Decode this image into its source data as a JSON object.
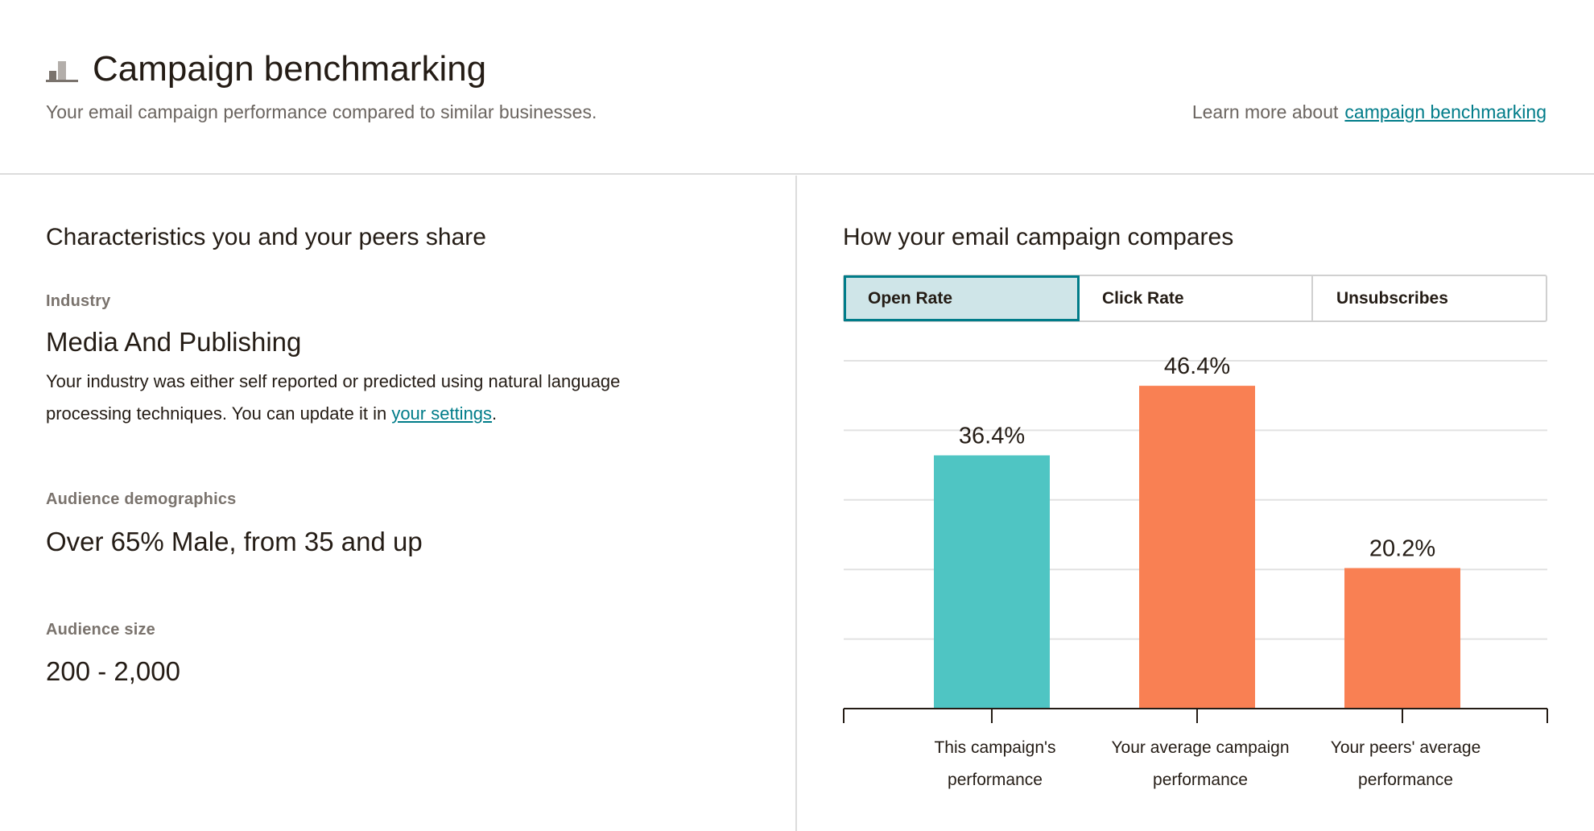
{
  "header": {
    "title": "Campaign benchmarking",
    "subtitle": "Your email campaign performance compared to similar businesses.",
    "learn_more_prefix": "Learn more about",
    "learn_more_link": "campaign benchmarking",
    "icon": "bar-chart-icon"
  },
  "characteristics": {
    "heading": "Characteristics you and your peers share",
    "industry": {
      "label": "Industry",
      "value": "Media And Publishing",
      "desc_prefix": "Your industry was either self reported or predicted using natural language processing techniques. You can update it in ",
      "desc_link": "your settings",
      "desc_suffix": "."
    },
    "demographics": {
      "label": "Audience demographics",
      "value": "Over 65% Male, from 35 and up"
    },
    "size": {
      "label": "Audience size",
      "value": "200 - 2,000"
    }
  },
  "comparison": {
    "heading": "How your email campaign compares",
    "tabs": [
      {
        "label": "Open Rate",
        "active": true
      },
      {
        "label": "Click Rate",
        "active": false
      },
      {
        "label": "Unsubscribes",
        "active": false
      }
    ]
  },
  "colors": {
    "campaign_bar": "#4fc5c3",
    "comparison_bar": "#f98053",
    "accent": "#007c89"
  },
  "chart_data": {
    "type": "bar",
    "categories": [
      [
        "This campaign's",
        "performance"
      ],
      [
        "Your average campaign",
        "performance"
      ],
      [
        "Your peers' average",
        "performance"
      ]
    ],
    "values": [
      36.4,
      46.4,
      20.2
    ],
    "value_labels": [
      "36.4%",
      "46.4%",
      "20.2%"
    ],
    "ylim": [
      0,
      50
    ],
    "grid": true,
    "bar_colors": [
      "#4fc5c3",
      "#f98053",
      "#f98053"
    ]
  }
}
